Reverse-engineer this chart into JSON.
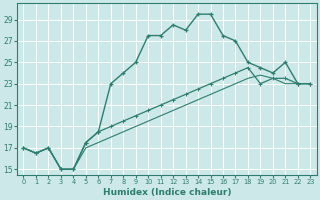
{
  "xlabel": "Humidex (Indice chaleur)",
  "bg_color": "#cde8e8",
  "grid_color": "#ffffff",
  "line_color": "#2e7d6e",
  "xlim": [
    -0.5,
    23.5
  ],
  "ylim": [
    14.5,
    30.5
  ],
  "yticks": [
    15,
    17,
    19,
    21,
    23,
    25,
    27,
    29
  ],
  "xticks": [
    0,
    1,
    2,
    3,
    4,
    5,
    6,
    7,
    8,
    9,
    10,
    11,
    12,
    13,
    14,
    15,
    16,
    17,
    18,
    19,
    20,
    21,
    22,
    23
  ],
  "line1_x": [
    0,
    1,
    2,
    3,
    4,
    5,
    6,
    7,
    8,
    9,
    10,
    11,
    12,
    13,
    14,
    15,
    16,
    17,
    18,
    19,
    20,
    21,
    22,
    23
  ],
  "line1_y": [
    17,
    16.5,
    17,
    15,
    15,
    17.5,
    18.5,
    23,
    24,
    25,
    27.5,
    27.5,
    28.5,
    28,
    29.5,
    29.5,
    27.5,
    27,
    25,
    24.5,
    24,
    25,
    23,
    23
  ],
  "line2_x": [
    0,
    1,
    2,
    3,
    4,
    5,
    6,
    7,
    8,
    9,
    10,
    11,
    12,
    13,
    14,
    15,
    16,
    17,
    18,
    19,
    20,
    21,
    22,
    23
  ],
  "line2_y": [
    17,
    16.5,
    17,
    15,
    15,
    17.5,
    18.5,
    19,
    19.5,
    20,
    20.5,
    21,
    21.5,
    22,
    22.5,
    23,
    23.5,
    24,
    24.5,
    23,
    23.5,
    23.5,
    23,
    23
  ],
  "line3_x": [
    0,
    1,
    2,
    3,
    4,
    5,
    6,
    7,
    8,
    9,
    10,
    11,
    12,
    13,
    14,
    15,
    16,
    17,
    18,
    19,
    20,
    21,
    22,
    23
  ],
  "line3_y": [
    17,
    16.5,
    17,
    15,
    15,
    17.0,
    17.5,
    18,
    18.5,
    19,
    19.5,
    20,
    20.5,
    21,
    21.5,
    22,
    22.5,
    23,
    23.5,
    23.8,
    23.5,
    23,
    23,
    23
  ]
}
